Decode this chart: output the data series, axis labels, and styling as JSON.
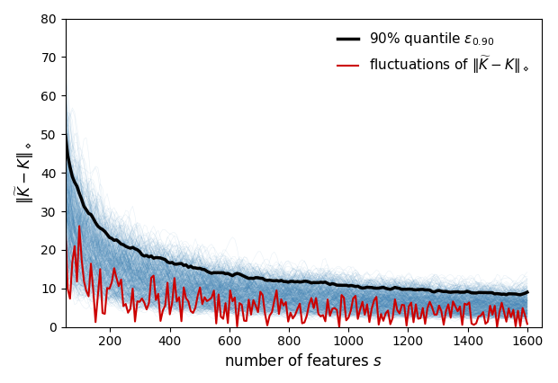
{
  "xlabel": "number of features $s$",
  "ylabel": "$\\|\\widetilde{K} - K\\|_\\diamond$",
  "xlim": [
    50,
    1650
  ],
  "ylim": [
    0,
    80
  ],
  "yticks": [
    0,
    10,
    20,
    30,
    40,
    50,
    60,
    70,
    80
  ],
  "xticks": [
    200,
    400,
    600,
    800,
    1000,
    1200,
    1400,
    1600
  ],
  "n_blue_lines": 500,
  "blue_color": "#4488bb",
  "blue_alpha": 0.12,
  "black_color": "#000000",
  "red_color": "#cc0000",
  "quantile": 0.9,
  "s_start": 50,
  "s_end": 1600,
  "n_points": 200,
  "seed": 42,
  "legend_loc": "upper right",
  "legend1_label": "90% quantile $\\varepsilon_{0.90}$",
  "legend2_label": "fluctuations of $\\|\\widetilde{K} - K\\|_\\diamond$",
  "amplitude": 350.0,
  "red_amplitude": 350.0
}
